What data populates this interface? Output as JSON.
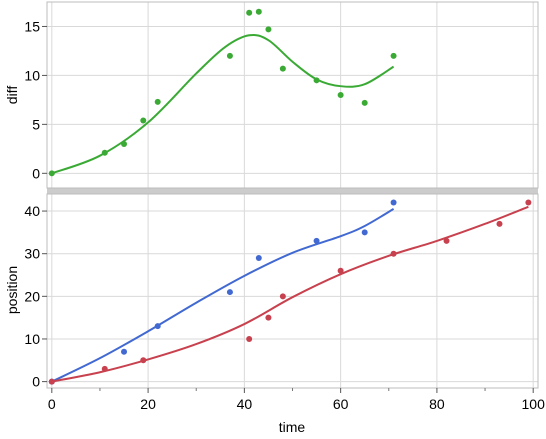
{
  "chart_data": [
    {
      "type": "scatter",
      "panel": "top",
      "ylabel": "diff",
      "xlim": [
        0,
        100
      ],
      "ylim": [
        -1.5,
        17.5
      ],
      "yticks": [
        0,
        5,
        10,
        15
      ],
      "grid": true,
      "series": [
        {
          "color": "#3aaa35",
          "points": [
            [
              0,
              0
            ],
            [
              11,
              2.1
            ],
            [
              15,
              3
            ],
            [
              19,
              5.4
            ],
            [
              22,
              7.3
            ],
            [
              37,
              12
            ],
            [
              41,
              16.4
            ],
            [
              43,
              16.5
            ],
            [
              45,
              14.7
            ],
            [
              48,
              10.7
            ],
            [
              55,
              9.5
            ],
            [
              60,
              8
            ],
            [
              65,
              7.2
            ],
            [
              71,
              12
            ]
          ],
          "fit": [
            [
              0,
              0
            ],
            [
              10,
              1.8
            ],
            [
              20,
              5.2
            ],
            [
              30,
              10.2
            ],
            [
              36,
              12.9
            ],
            [
              41,
              14.1
            ],
            [
              45,
              13.6
            ],
            [
              50,
              11.4
            ],
            [
              55,
              9.6
            ],
            [
              60,
              8.9
            ],
            [
              65,
              9.1
            ],
            [
              71,
              10.9
            ]
          ]
        }
      ]
    },
    {
      "type": "scatter",
      "panel": "bottom",
      "xlabel": "time",
      "ylabel": "position",
      "xlim": [
        -1,
        101
      ],
      "ylim": [
        -1.5,
        44
      ],
      "xticks": [
        0,
        20,
        40,
        60,
        80,
        100
      ],
      "yticks": [
        0,
        10,
        20,
        30,
        40
      ],
      "grid": true,
      "series": [
        {
          "color": "#4169d1",
          "points": [
            [
              0,
              0
            ],
            [
              15,
              7
            ],
            [
              22,
              13
            ],
            [
              37,
              21
            ],
            [
              43,
              29
            ],
            [
              55,
              33
            ],
            [
              65,
              35
            ],
            [
              71,
              42
            ]
          ],
          "fit": [
            [
              0,
              0
            ],
            [
              10,
              5.5
            ],
            [
              20,
              11.8
            ],
            [
              30,
              18.5
            ],
            [
              40,
              24.8
            ],
            [
              50,
              30.2
            ],
            [
              60,
              34.1
            ],
            [
              65,
              36.5
            ],
            [
              71,
              40.5
            ]
          ]
        },
        {
          "color": "#c8414e",
          "points": [
            [
              0,
              0
            ],
            [
              11,
              3
            ],
            [
              19,
              5
            ],
            [
              41,
              10
            ],
            [
              45,
              15
            ],
            [
              48,
              20
            ],
            [
              60,
              26
            ],
            [
              71,
              30
            ],
            [
              82,
              33
            ],
            [
              93,
              37
            ],
            [
              99,
              42
            ]
          ],
          "fit": [
            [
              0,
              0
            ],
            [
              10,
              2.2
            ],
            [
              20,
              5.2
            ],
            [
              30,
              8.8
            ],
            [
              40,
              13.5
            ],
            [
              50,
              19.8
            ],
            [
              60,
              25.2
            ],
            [
              70,
              29.5
            ],
            [
              80,
              33
            ],
            [
              90,
              37
            ],
            [
              99,
              41
            ]
          ]
        }
      ]
    }
  ],
  "colors": {
    "grid": "#d9d9d9",
    "frame": "#bcbcbc",
    "separator": "#cccccc"
  }
}
